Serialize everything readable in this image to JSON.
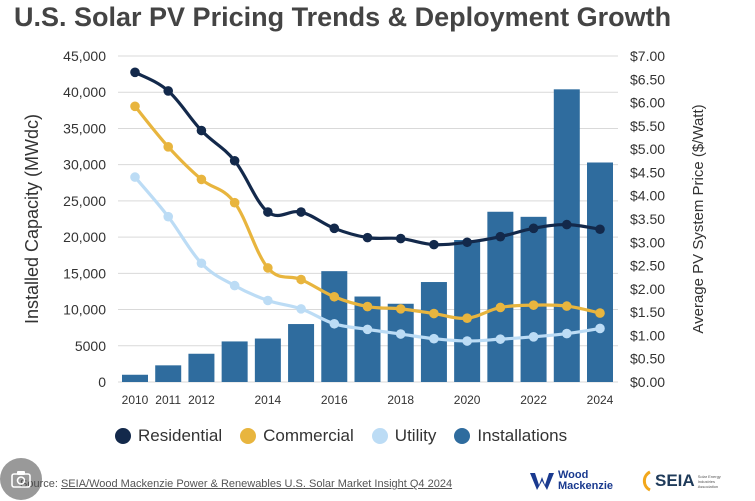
{
  "title": "U.S. Solar PV Pricing Trends & Deployment Growth",
  "footer": {
    "prefix": "Source: ",
    "source_text": "SEIA/Wood Mackenzie Power & Renewables U.S. Solar Market Insight Q4 2024"
  },
  "logos": {
    "woodmac_line1": "Wood",
    "woodmac_line2": "Mackenzie",
    "seia": "SEIA",
    "seia_sub": "Solar Energy Industries Association"
  },
  "colors": {
    "residential": "#13294b",
    "commercial": "#e8b53e",
    "utility": "#bcdcf5",
    "installations": "#2f6c9e"
  },
  "chart_data": {
    "type": "bar",
    "x": [
      2010,
      2011,
      2012,
      2013,
      2014,
      2015,
      2016,
      2017,
      2018,
      2019,
      2020,
      2021,
      2022,
      2023,
      2024
    ],
    "x_tick_labels": [
      "2010",
      "2011",
      "2012",
      "2014",
      "2016",
      "2018",
      "2020",
      "2022",
      "2024"
    ],
    "x_tick_values": [
      2010,
      2011,
      2012,
      2014,
      2016,
      2018,
      2020,
      2022,
      2024
    ],
    "ylabel": "Installed Capacity (MWdc)",
    "ylim": [
      0,
      45000
    ],
    "y_ticks": [
      0,
      5000,
      10000,
      15000,
      20000,
      25000,
      30000,
      35000,
      40000,
      45000
    ],
    "y_tick_labels": [
      "0",
      "5000",
      "10,000",
      "15,000",
      "20,000",
      "25,000",
      "30,000",
      "35,000",
      "40,000",
      "45,000"
    ],
    "y2label": "Average PV System Price ($/Watt)",
    "y2lim": [
      0,
      7
    ],
    "y2_ticks": [
      0,
      0.5,
      1,
      1.5,
      2,
      2.5,
      3,
      3.5,
      4,
      4.5,
      5,
      5.5,
      6,
      6.5,
      7
    ],
    "y2_tick_labels": [
      "$0.00",
      "$0.50",
      "$1.00",
      "$1.50",
      "$2.00",
      "$2.50",
      "$3.00",
      "$3.50",
      "$4.00",
      "$4.50",
      "$5.00",
      "$5.50",
      "$6.00",
      "$6.50",
      "$7.00"
    ],
    "grid": "horizontal",
    "legend_position": "bottom",
    "series": [
      {
        "name": "Installations",
        "type": "bar",
        "axis": "left",
        "values": [
          1000,
          2300,
          3900,
          5600,
          6000,
          8000,
          15300,
          11800,
          10800,
          13800,
          19600,
          23500,
          22800,
          40400,
          30300
        ]
      },
      {
        "name": "Residential",
        "type": "line",
        "axis": "right",
        "values": [
          6.65,
          6.25,
          5.4,
          4.75,
          3.65,
          3.65,
          3.3,
          3.1,
          3.08,
          2.95,
          3.0,
          3.12,
          3.3,
          3.38,
          3.28
        ]
      },
      {
        "name": "Commercial",
        "type": "line",
        "axis": "right",
        "values": [
          5.92,
          5.05,
          4.35,
          3.85,
          2.45,
          2.2,
          1.83,
          1.62,
          1.57,
          1.47,
          1.37,
          1.6,
          1.65,
          1.63,
          1.48
        ]
      },
      {
        "name": "Utility",
        "type": "line",
        "axis": "right",
        "values": [
          4.4,
          3.55,
          2.55,
          2.07,
          1.75,
          1.57,
          1.25,
          1.13,
          1.03,
          0.93,
          0.88,
          0.92,
          0.97,
          1.04,
          1.15
        ]
      }
    ],
    "legend_order": [
      "Residential",
      "Commercial",
      "Utility",
      "Installations"
    ]
  }
}
